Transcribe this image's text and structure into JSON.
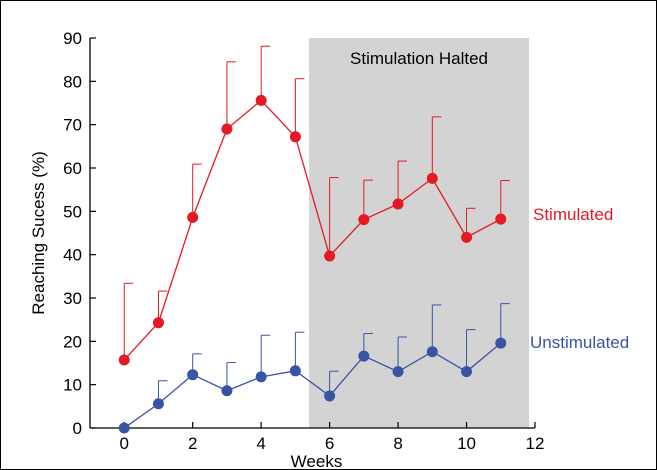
{
  "chart_data": {
    "type": "line",
    "xlabel": "Weeks",
    "ylabel": "Reaching Sucess (%)",
    "xlim": [
      -1,
      12
    ],
    "ylim": [
      0,
      90
    ],
    "x_ticks": [
      0,
      2,
      4,
      6,
      8,
      10,
      12
    ],
    "y_ticks": [
      0,
      10,
      20,
      30,
      40,
      50,
      60,
      70,
      80,
      90
    ],
    "grid": false,
    "shaded_region": {
      "label": "Stimulation Halted",
      "x_start": 5.4,
      "x_end": 12,
      "color": "#d3d3d3"
    },
    "series": [
      {
        "name": "Stimulated",
        "color": "#e31a23",
        "x": [
          0,
          1,
          2,
          3,
          4,
          5,
          6,
          7,
          8,
          9,
          10,
          11
        ],
        "values": [
          15.7,
          24.3,
          48.6,
          69.0,
          75.6,
          67.2,
          39.7,
          48.1,
          51.7,
          57.6,
          44.0,
          48.2
        ],
        "error_upper": [
          33.4,
          31.6,
          60.9,
          84.5,
          88.1,
          80.6,
          57.8,
          57.2,
          61.6,
          71.8,
          50.7,
          57.1
        ]
      },
      {
        "name": "Unstimulated",
        "color": "#3a54a4",
        "x": [
          0,
          1,
          2,
          3,
          4,
          5,
          6,
          7,
          8,
          9,
          10,
          11
        ],
        "values": [
          0.0,
          5.6,
          12.3,
          8.6,
          11.8,
          13.2,
          7.4,
          16.6,
          13.0,
          17.6,
          13.0,
          19.6
        ],
        "error_upper": [
          0.0,
          10.9,
          17.1,
          15.1,
          21.4,
          22.1,
          13.1,
          21.8,
          21.0,
          28.4,
          22.7,
          28.7
        ]
      }
    ]
  }
}
